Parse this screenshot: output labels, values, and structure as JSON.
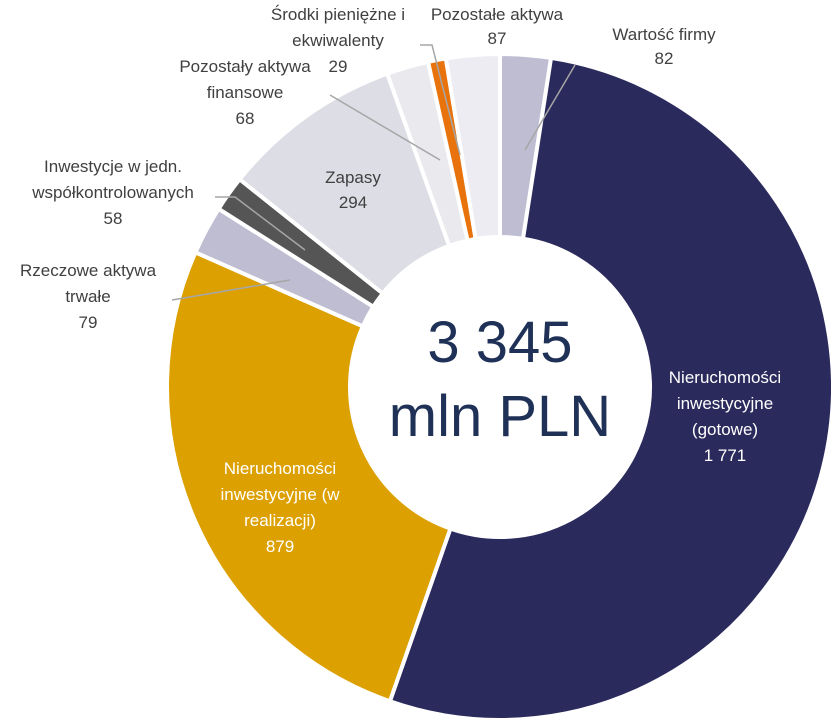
{
  "chart_data": {
    "type": "donut",
    "center_text": [
      "3 345",
      "mln PLN"
    ],
    "categories": [
      "Wartość firmy",
      "Nieruchomości inwestycyjne (gotowe)",
      "Nieruchomości inwestycyjne (w realizacji)",
      "Rzeczowe aktywa trwałe",
      "Inwestycje w jedn. współkontrolowanych",
      "Zapasy",
      "Pozostały aktywa finansowe",
      "Środki pieniężne i ekwiwalenty",
      "Pozostałe aktywa"
    ],
    "values": [
      82,
      1771,
      879,
      79,
      58,
      294,
      68,
      29,
      87
    ],
    "value_labels": [
      "82",
      "1 771",
      "879",
      "79",
      "58",
      "294",
      "68",
      "29",
      "87"
    ],
    "colors": [
      "#bfbdd2",
      "#2b2a5c",
      "#dca000",
      "#bfbdd2",
      "#555555",
      "#dddde5",
      "#e9e9ee",
      "#e8730c",
      "#ececf2"
    ]
  }
}
